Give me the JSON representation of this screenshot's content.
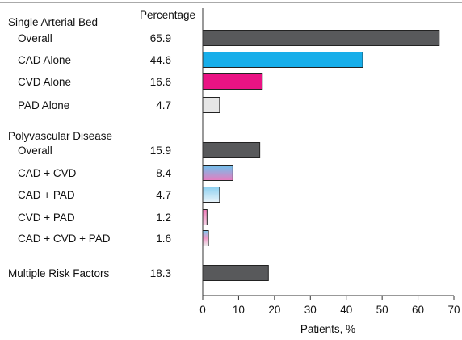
{
  "chart_data": {
    "type": "bar",
    "orientation": "horizontal",
    "value_column_header": "Percentage",
    "xlabel": "Patients, %",
    "xlim": [
      0,
      70
    ],
    "xticks": [
      0,
      10,
      20,
      30,
      40,
      50,
      60,
      70
    ],
    "grid": false,
    "groups": [
      {
        "label": "Single Arterial Bed",
        "rows": [
          {
            "label": "Overall",
            "value": 65.9,
            "value_text": "65.9",
            "style": "dark"
          },
          {
            "label": "CAD Alone",
            "value": 44.6,
            "value_text": "44.6",
            "style": "cad"
          },
          {
            "label": "CVD Alone",
            "value": 16.6,
            "value_text": "16.6",
            "style": "cvd"
          },
          {
            "label": "PAD Alone",
            "value": 4.7,
            "value_text": "4.7",
            "style": "pad"
          }
        ]
      },
      {
        "label": "Polyvascular Disease",
        "rows": [
          {
            "label": "Overall",
            "value": 15.9,
            "value_text": "15.9",
            "style": "dark"
          },
          {
            "label": "CAD + CVD",
            "value": 8.4,
            "value_text": "8.4",
            "style": "cad_cvd"
          },
          {
            "label": "CAD + PAD",
            "value": 4.7,
            "value_text": "4.7",
            "style": "cad_pad"
          },
          {
            "label": "CVD + PAD",
            "value": 1.2,
            "value_text": "1.2",
            "style": "cvd_pad"
          },
          {
            "label": "CAD + CVD + PAD",
            "value": 1.6,
            "value_text": "1.6",
            "style": "all3"
          }
        ]
      },
      {
        "label": "",
        "rows": [
          {
            "label": "Multiple Risk Factors",
            "value": 18.3,
            "value_text": "18.3",
            "style": "dark",
            "bold_row": true
          }
        ]
      }
    ],
    "colors": {
      "dark": "#58595b",
      "cad": "#17aeea",
      "cvd": "#ea1384",
      "pad": "#e6e6e6",
      "bar_stroke": "#222222",
      "axis": "#333333"
    }
  }
}
